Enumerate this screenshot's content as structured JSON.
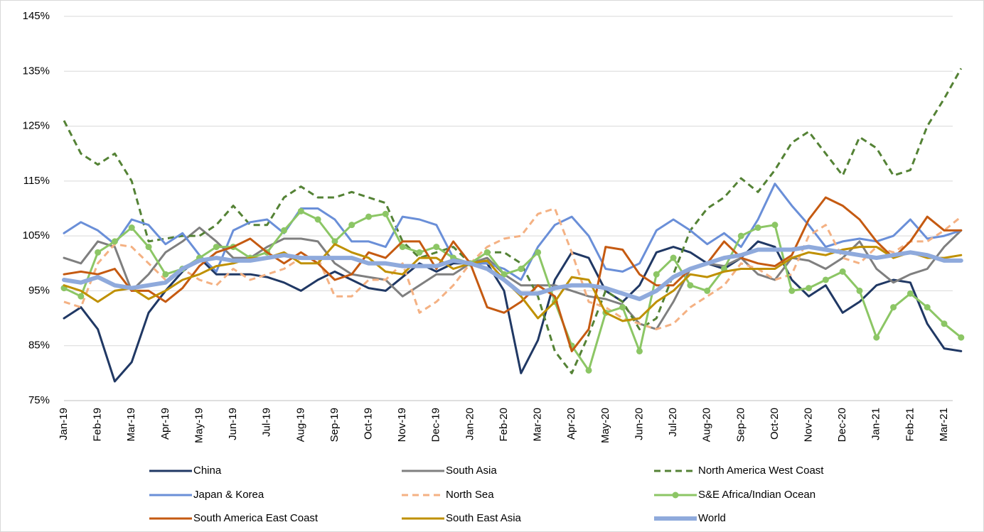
{
  "chart_data": {
    "type": "line",
    "categories": [
      "Jan-19",
      null,
      "Feb-19",
      null,
      "Mar-19",
      null,
      "Apr-19",
      null,
      "May-19",
      null,
      "Jun-19",
      null,
      "Jul-19",
      null,
      "Aug-19",
      null,
      "Sep-19",
      null,
      "Oct-19",
      null,
      "Nov-19",
      null,
      "Dec-19",
      null,
      "Jan-20",
      null,
      "Feb-20",
      null,
      "Mar-20",
      null,
      "Apr-20",
      null,
      "May-20",
      null,
      "Jun-20",
      null,
      "Jul-20",
      null,
      "Aug-20",
      null,
      "Sep-20",
      null,
      "Oct-20",
      null,
      "Nov-20",
      null,
      "Dec-20",
      null,
      "Jan-21",
      null,
      "Feb-21",
      null,
      "Mar-21",
      null
    ],
    "ylim": [
      75,
      145
    ],
    "yticks": [
      {
        "value": 75,
        "label": "75%"
      },
      {
        "value": 85,
        "label": "85%"
      },
      {
        "value": 95,
        "label": "95%"
      },
      {
        "value": 105,
        "label": "105%"
      },
      {
        "value": 115,
        "label": "115%"
      },
      {
        "value": 125,
        "label": "125%"
      },
      {
        "value": 135,
        "label": "135%"
      },
      {
        "value": 145,
        "label": "145%"
      }
    ],
    "grid": true,
    "series": [
      {
        "name": "China",
        "color": "#203864",
        "values": [
          90,
          92,
          88,
          78.5,
          82,
          91,
          95,
          98.5,
          101,
          98,
          98,
          98,
          97.5,
          96.5,
          95,
          97,
          98.5,
          97,
          95.5,
          95,
          97.5,
          100,
          98.5,
          100,
          100,
          100,
          95,
          80,
          86,
          97,
          102,
          101,
          95,
          93,
          96,
          102,
          103,
          102,
          100,
          99,
          101,
          104,
          103,
          97,
          94,
          96,
          91,
          93,
          96,
          97,
          96.5,
          89,
          84.5,
          84
        ]
      },
      {
        "name": "South Asia",
        "color": "#7f7f7f",
        "values": [
          101,
          100,
          104,
          103,
          95,
          98,
          102,
          104,
          106.5,
          104,
          101,
          101,
          103,
          104.5,
          104.5,
          104,
          100,
          98,
          97.5,
          97,
          94,
          96,
          98,
          98,
          100,
          101,
          98,
          96,
          96,
          96,
          95,
          94,
          93.5,
          92.5,
          89,
          88,
          93,
          99,
          100,
          99.5,
          101,
          98,
          97,
          101,
          100.5,
          99,
          101,
          104,
          99,
          96.5,
          98,
          99,
          103,
          106
        ]
      },
      {
        "name": "North America West Coast",
        "color": "#548235",
        "dash": true,
        "values": [
          126,
          120,
          118,
          120,
          115,
          104,
          104.5,
          105,
          105,
          107,
          110.5,
          107,
          107,
          112,
          114,
          112,
          112,
          113,
          112,
          111,
          104,
          101,
          102,
          103,
          100,
          102,
          102,
          100,
          94,
          84,
          80,
          87,
          95,
          93,
          88,
          90,
          98,
          106,
          110,
          112,
          115.5,
          113,
          117,
          122,
          124,
          120,
          116,
          123,
          121,
          116,
          117,
          125,
          130,
          135.5
        ]
      },
      {
        "name": "Japan & Korea",
        "color": "#6a8fd8",
        "values": [
          105.5,
          107.5,
          106,
          103.5,
          108,
          107,
          103.5,
          105.5,
          101.5,
          98.5,
          106,
          107.5,
          108,
          105.5,
          110,
          110,
          108,
          104,
          104,
          103,
          108.5,
          108,
          107,
          101,
          100,
          100,
          99,
          97,
          103,
          107,
          108.5,
          105,
          99,
          98.5,
          100,
          106,
          108,
          106,
          103.5,
          105.5,
          103,
          108,
          114.5,
          110.5,
          107,
          103,
          104,
          104.5,
          104,
          105,
          108,
          104.5,
          105,
          106
        ]
      },
      {
        "name": "North Sea",
        "color": "#f4b183",
        "dash": true,
        "values": [
          93,
          92,
          100,
          103.5,
          103,
          100,
          97,
          99,
          97,
          96,
          99,
          97,
          98,
          99,
          101,
          101,
          94,
          94,
          97,
          97,
          100,
          91,
          93,
          96,
          100,
          103,
          104.5,
          105,
          109,
          110,
          102,
          93,
          92,
          90,
          89,
          88,
          89,
          92,
          94,
          96,
          100,
          99,
          97,
          98,
          105,
          107,
          101,
          100,
          103,
          102,
          104,
          104,
          106,
          108.5
        ]
      },
      {
        "name": "S&E Africa/Indian Ocean",
        "color": "#8cc665",
        "markers": true,
        "values": [
          95.5,
          94,
          102,
          104,
          106.5,
          103,
          98,
          99,
          101,
          103,
          103,
          101,
          102,
          106,
          109.5,
          108,
          104,
          107,
          108.5,
          109,
          103,
          102,
          103,
          101,
          100,
          102,
          98,
          99,
          102,
          93,
          85,
          80.5,
          91,
          92,
          84,
          98,
          101,
          96,
          95,
          99,
          105,
          106.5,
          107,
          95,
          95.5,
          97,
          98.5,
          95,
          86.5,
          92,
          94.5,
          92,
          89,
          86.5
        ]
      },
      {
        "name": "South America East Coast",
        "color": "#c55a11",
        "values": [
          98,
          98.5,
          98,
          99,
          95,
          95,
          93,
          95.5,
          99.5,
          102,
          103,
          104.5,
          102,
          100,
          102,
          100,
          97,
          98,
          102,
          101,
          104,
          104,
          99,
          104,
          100,
          92,
          91,
          93,
          96,
          94,
          84,
          88,
          103,
          102.5,
          98,
          96,
          96,
          99,
          100,
          104,
          101,
          100,
          99.5,
          101.5,
          108,
          112,
          110.5,
          108,
          104,
          101,
          104,
          108.5,
          106,
          106
        ]
      },
      {
        "name": "South East Asia",
        "color": "#bf9000",
        "values": [
          96,
          95,
          93,
          95,
          95.5,
          93.5,
          95,
          97,
          98,
          99.5,
          100,
          101,
          101,
          102,
          100,
          100,
          103.5,
          102,
          101,
          98.5,
          98,
          101,
          101,
          99,
          100,
          100.5,
          97,
          94,
          90,
          93,
          97.5,
          97,
          91,
          89.5,
          90,
          93,
          95,
          98,
          97.5,
          98.5,
          99,
          99,
          99,
          101,
          102,
          101.5,
          102.5,
          103,
          103,
          101,
          102,
          101,
          101,
          101.5
        ]
      },
      {
        "name": "World",
        "color": "#8faadc",
        "thick": true,
        "values": [
          97,
          96.5,
          97.5,
          96,
          95.5,
          96,
          96.5,
          99,
          100.5,
          101,
          100.5,
          100.5,
          101,
          101.5,
          101,
          101,
          101,
          101,
          100,
          100,
          99.5,
          99.5,
          99.5,
          100.5,
          100,
          99,
          97,
          94.5,
          94.5,
          95.5,
          96,
          96,
          95.5,
          94.5,
          93.5,
          95,
          97.5,
          99,
          100,
          101,
          101.5,
          102.5,
          102.5,
          102.5,
          103,
          102.5,
          102,
          101.5,
          101,
          101.5,
          102,
          101.5,
          100.5,
          100.5
        ]
      }
    ]
  }
}
